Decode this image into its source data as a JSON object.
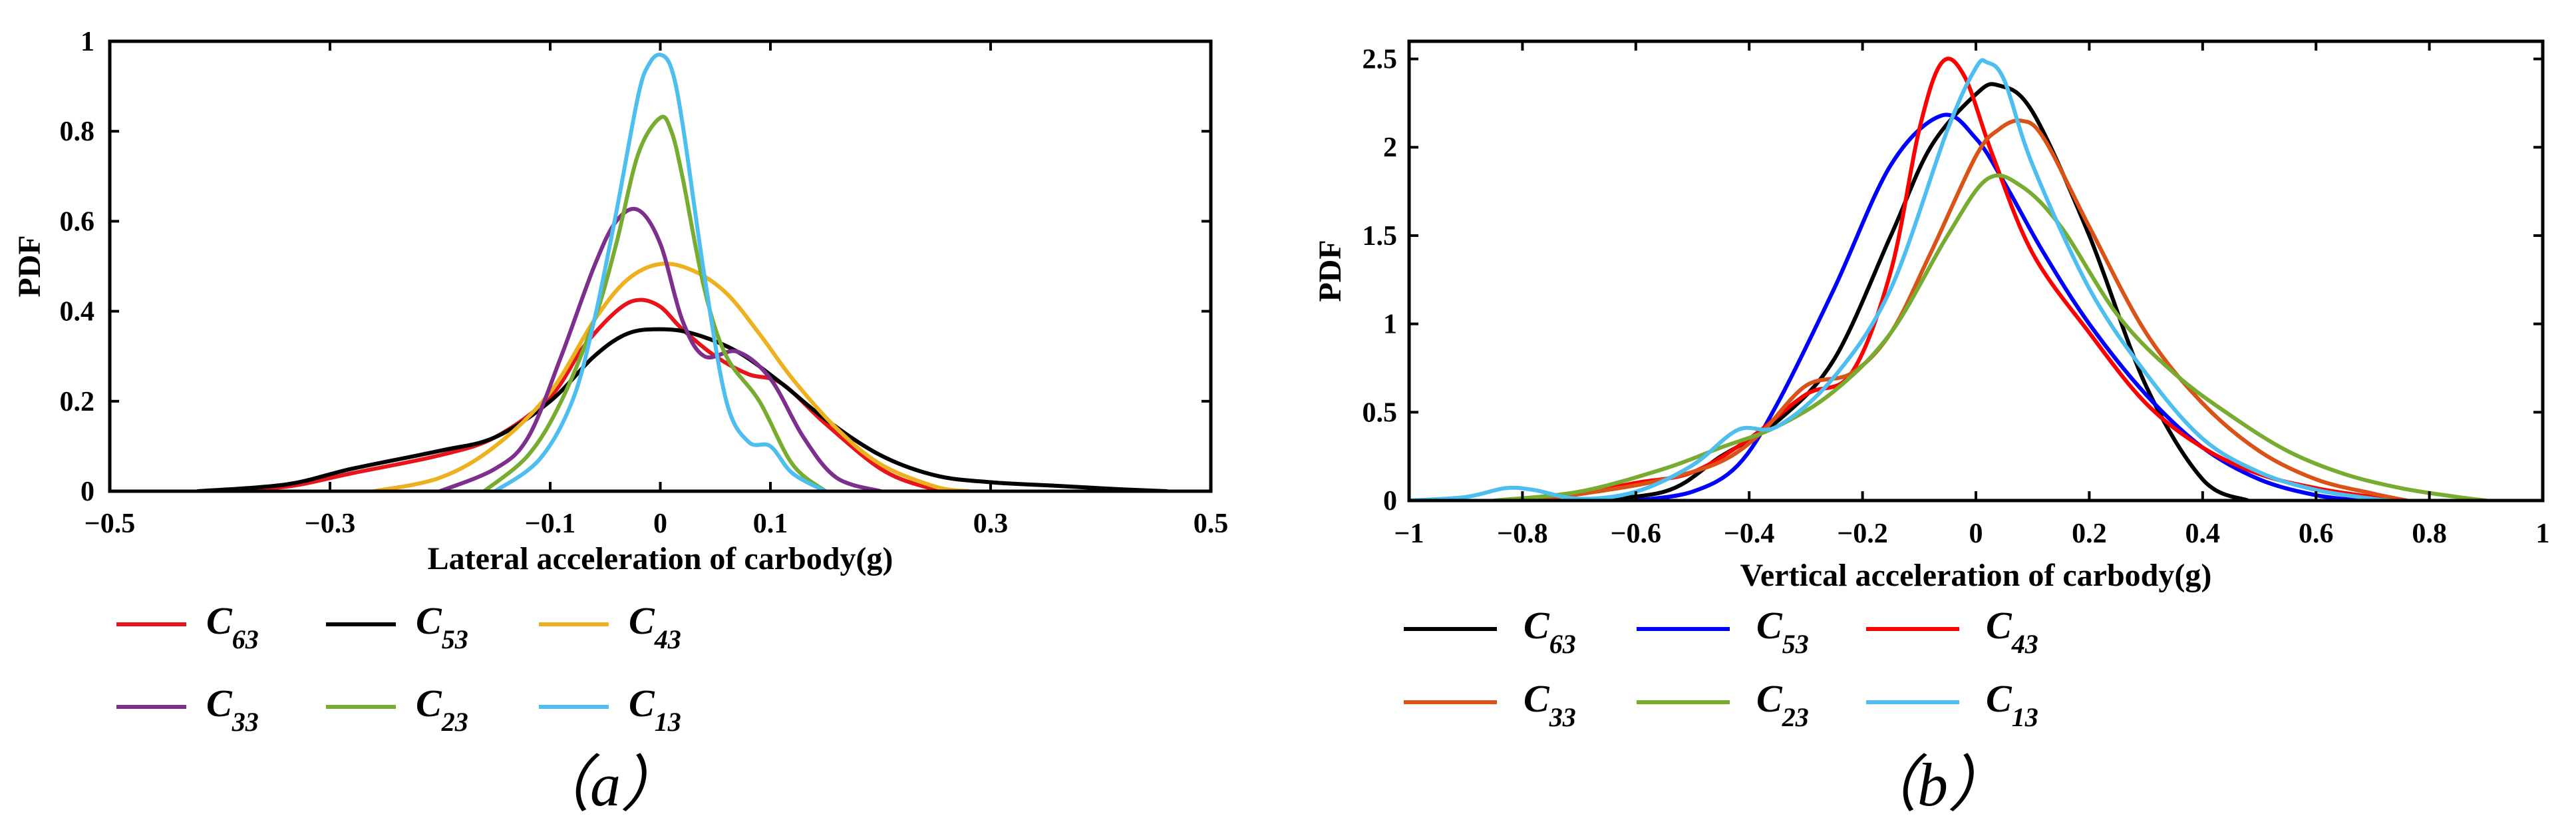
{
  "chart_data": [
    {
      "type": "line",
      "panel_label": "（a）",
      "xlabel": "Lateral acceleration of  carbody(g)",
      "ylabel": "PDF",
      "xlim": [
        -0.5,
        0.5
      ],
      "ylim": [
        0,
        1
      ],
      "xticks": [
        -0.5,
        -0.3,
        -0.1,
        0,
        0.1,
        0.3,
        0.5
      ],
      "xtick_labels": [
        "−0.5",
        "−0.3",
        "−0.1",
        "0",
        "0.1",
        "0.3",
        "0.5"
      ],
      "yticks": [
        0,
        0.2,
        0.4,
        0.6,
        0.8,
        1
      ],
      "ytick_labels": [
        "0",
        "0.2",
        "0.4",
        "0.6",
        "0.8",
        "1"
      ],
      "legend_position": "below",
      "series": [
        {
          "name": "C",
          "sub": "63",
          "color": "#e8141c",
          "x": [
            -0.41,
            -0.34,
            -0.28,
            -0.2,
            -0.15,
            -0.1,
            -0.07,
            -0.04,
            -0.02,
            0,
            0.02,
            0.05,
            0.08,
            0.11,
            0.15,
            0.2,
            0.24,
            0.27
          ],
          "y": [
            0,
            0.01,
            0.04,
            0.08,
            0.12,
            0.21,
            0.32,
            0.4,
            0.425,
            0.41,
            0.36,
            0.3,
            0.26,
            0.24,
            0.15,
            0.05,
            0.01,
            0
          ]
        },
        {
          "name": "C",
          "sub": "53",
          "color": "#000000",
          "x": [
            -0.42,
            -0.34,
            -0.28,
            -0.2,
            -0.15,
            -0.1,
            -0.06,
            -0.03,
            0,
            0.03,
            0.07,
            0.11,
            0.15,
            0.2,
            0.25,
            0.3,
            0.36,
            0.42,
            0.46
          ],
          "y": [
            0,
            0.015,
            0.05,
            0.09,
            0.12,
            0.2,
            0.3,
            0.35,
            0.36,
            0.35,
            0.31,
            0.24,
            0.16,
            0.08,
            0.035,
            0.02,
            0.012,
            0.004,
            0
          ]
        },
        {
          "name": "C",
          "sub": "43",
          "color": "#edb120",
          "x": [
            -0.26,
            -0.2,
            -0.15,
            -0.1,
            -0.06,
            -0.03,
            0,
            0.03,
            0.06,
            0.09,
            0.12,
            0.16,
            0.2,
            0.25,
            0.28
          ],
          "y": [
            0,
            0.03,
            0.1,
            0.22,
            0.38,
            0.47,
            0.505,
            0.49,
            0.44,
            0.35,
            0.25,
            0.14,
            0.06,
            0.01,
            0
          ]
        },
        {
          "name": "C",
          "sub": "33",
          "color": "#7e2f8e",
          "x": [
            -0.2,
            -0.15,
            -0.12,
            -0.09,
            -0.06,
            -0.04,
            -0.02,
            0,
            0.02,
            0.04,
            0.07,
            0.1,
            0.13,
            0.16,
            0.2
          ],
          "y": [
            0,
            0.05,
            0.12,
            0.3,
            0.5,
            0.6,
            0.625,
            0.55,
            0.38,
            0.3,
            0.31,
            0.25,
            0.12,
            0.03,
            0
          ]
        },
        {
          "name": "C",
          "sub": "23",
          "color": "#77ac30",
          "x": [
            -0.16,
            -0.12,
            -0.09,
            -0.06,
            -0.04,
            -0.02,
            0,
            0.01,
            0.02,
            0.04,
            0.06,
            0.09,
            0.12,
            0.15
          ],
          "y": [
            0,
            0.08,
            0.2,
            0.38,
            0.55,
            0.75,
            0.83,
            0.8,
            0.7,
            0.45,
            0.3,
            0.2,
            0.06,
            0
          ]
        },
        {
          "name": "C",
          "sub": "13",
          "color": "#4dbeee",
          "x": [
            -0.15,
            -0.11,
            -0.08,
            -0.06,
            -0.04,
            -0.02,
            -0.01,
            0,
            0.01,
            0.02,
            0.04,
            0.06,
            0.08,
            0.1,
            0.12,
            0.15
          ],
          "y": [
            0,
            0.07,
            0.2,
            0.38,
            0.62,
            0.88,
            0.95,
            0.97,
            0.94,
            0.82,
            0.48,
            0.2,
            0.11,
            0.1,
            0.04,
            0
          ]
        }
      ]
    },
    {
      "type": "line",
      "panel_label": "（b）",
      "xlabel": "Vertical acceleration of carbody(g)",
      "ylabel": "PDF",
      "xlim": [
        -1,
        1
      ],
      "ylim": [
        0,
        2.6
      ],
      "xticks": [
        -1,
        -0.8,
        -0.6,
        -0.4,
        -0.2,
        0,
        0.2,
        0.4,
        0.6,
        0.8,
        1
      ],
      "xtick_labels": [
        "−1",
        "−0.8",
        "−0.6",
        "−0.4",
        "−0.2",
        "0",
        "0.2",
        "0.4",
        "0.6",
        "0.8",
        "1"
      ],
      "yticks": [
        0,
        0.5,
        1,
        1.5,
        2,
        2.5
      ],
      "ytick_labels": [
        "0",
        "0.5",
        "1",
        "1.5",
        "2",
        "2.5"
      ],
      "legend_position": "below",
      "series": [
        {
          "name": "C",
          "sub": "63",
          "color": "#000000",
          "x": [
            -0.72,
            -0.55,
            -0.45,
            -0.35,
            -0.25,
            -0.15,
            -0.08,
            0,
            0.04,
            0.1,
            0.2,
            0.3,
            0.4,
            0.48
          ],
          "y": [
            0,
            0.05,
            0.25,
            0.45,
            0.8,
            1.5,
            2.0,
            2.3,
            2.35,
            2.2,
            1.5,
            0.65,
            0.12,
            0
          ]
        },
        {
          "name": "C",
          "sub": "53",
          "color": "#0000ff",
          "x": [
            -0.6,
            -0.5,
            -0.42,
            -0.35,
            -0.25,
            -0.15,
            -0.06,
            0,
            0.05,
            0.12,
            0.2,
            0.3,
            0.4,
            0.5,
            0.6,
            0.68
          ],
          "y": [
            0,
            0.05,
            0.2,
            0.55,
            1.2,
            1.9,
            2.18,
            2.05,
            1.8,
            1.4,
            1.0,
            0.6,
            0.3,
            0.12,
            0.03,
            0
          ]
        },
        {
          "name": "C",
          "sub": "43",
          "color": "#ff0000",
          "x": [
            -0.8,
            -0.7,
            -0.6,
            -0.5,
            -0.4,
            -0.3,
            -0.22,
            -0.15,
            -0.1,
            -0.06,
            -0.02,
            0.03,
            0.1,
            0.2,
            0.3,
            0.4,
            0.5,
            0.6,
            0.7,
            0.76
          ],
          "y": [
            0,
            0.04,
            0.1,
            0.16,
            0.35,
            0.6,
            0.72,
            1.3,
            2.1,
            2.48,
            2.4,
            1.95,
            1.4,
            0.95,
            0.55,
            0.3,
            0.15,
            0.07,
            0.02,
            0
          ]
        },
        {
          "name": "C",
          "sub": "33",
          "color": "#d95319",
          "x": [
            -0.78,
            -0.65,
            -0.55,
            -0.45,
            -0.38,
            -0.3,
            -0.22,
            -0.15,
            -0.08,
            0,
            0.04,
            0.08,
            0.12,
            0.2,
            0.3,
            0.4,
            0.5,
            0.6,
            0.7,
            0.76
          ],
          "y": [
            0,
            0.06,
            0.12,
            0.22,
            0.38,
            0.65,
            0.72,
            0.95,
            1.4,
            1.95,
            2.1,
            2.15,
            2.05,
            1.55,
            0.95,
            0.55,
            0.28,
            0.12,
            0.04,
            0
          ]
        },
        {
          "name": "C",
          "sub": "23",
          "color": "#77ac30",
          "x": [
            -0.85,
            -0.7,
            -0.55,
            -0.45,
            -0.35,
            -0.25,
            -0.15,
            -0.05,
            0.02,
            0.08,
            0.15,
            0.25,
            0.35,
            0.45,
            0.55,
            0.65,
            0.75,
            0.85,
            0.9
          ],
          "y": [
            0,
            0.05,
            0.18,
            0.3,
            0.42,
            0.62,
            0.95,
            1.5,
            1.82,
            1.78,
            1.55,
            1.05,
            0.72,
            0.48,
            0.28,
            0.15,
            0.07,
            0.02,
            0
          ]
        },
        {
          "name": "C",
          "sub": "13",
          "color": "#4dbeee",
          "x": [
            -1,
            -0.9,
            -0.83,
            -0.78,
            -0.7,
            -0.6,
            -0.5,
            -0.42,
            -0.35,
            -0.25,
            -0.15,
            -0.05,
            0,
            0.02,
            0.05,
            0.1,
            0.2,
            0.3,
            0.4,
            0.5,
            0.6,
            0.7,
            0.73
          ],
          "y": [
            0,
            0.02,
            0.07,
            0.06,
            0.01,
            0.05,
            0.2,
            0.4,
            0.42,
            0.7,
            1.2,
            2.1,
            2.45,
            2.48,
            2.38,
            1.9,
            1.2,
            0.72,
            0.35,
            0.16,
            0.06,
            0.01,
            0
          ]
        }
      ]
    }
  ]
}
